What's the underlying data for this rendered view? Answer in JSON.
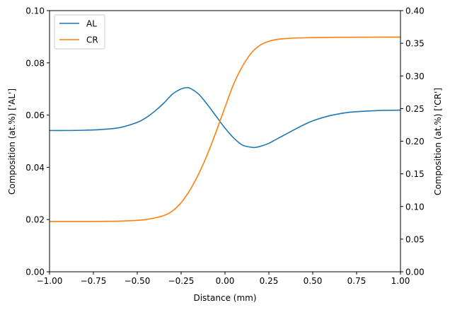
{
  "chart_data": {
    "type": "line",
    "title": "",
    "xlabel": "Distance (mm)",
    "ylabel_left": "Composition (at.%) ['AL']",
    "ylabel_right": "Composition (at.%) ['CR']",
    "xlim": [
      -1.0,
      1.0
    ],
    "ylim_left": [
      0.0,
      0.1
    ],
    "ylim_right": [
      0.0,
      0.4
    ],
    "x_ticks": [
      "−1.00",
      "−0.75",
      "−0.50",
      "−0.25",
      "0.00",
      "0.25",
      "0.50",
      "0.75",
      "1.00"
    ],
    "y_ticks_left": [
      "0.00",
      "0.02",
      "0.04",
      "0.06",
      "0.08",
      "0.10"
    ],
    "y_ticks_right": [
      "0.00",
      "0.05",
      "0.10",
      "0.15",
      "0.20",
      "0.25",
      "0.30",
      "0.35",
      "0.40"
    ],
    "grid": false,
    "legend": "top-left",
    "series": [
      {
        "name": "AL",
        "axis": "left",
        "color": "#1f77b4",
        "x": [
          -1.0,
          -0.9,
          -0.8,
          -0.7,
          -0.6,
          -0.5,
          -0.45,
          -0.4,
          -0.35,
          -0.3,
          -0.25,
          -0.22,
          -0.2,
          -0.15,
          -0.1,
          -0.05,
          0.0,
          0.05,
          0.1,
          0.15,
          0.17,
          0.2,
          0.25,
          0.3,
          0.35,
          0.4,
          0.45,
          0.5,
          0.6,
          0.7,
          0.8,
          0.9,
          1.0
        ],
        "y": [
          0.0541,
          0.0541,
          0.0542,
          0.0545,
          0.0552,
          0.0572,
          0.059,
          0.0615,
          0.0645,
          0.068,
          0.07,
          0.0705,
          0.0703,
          0.068,
          0.064,
          0.0595,
          0.055,
          0.0512,
          0.0485,
          0.0477,
          0.0476,
          0.048,
          0.0492,
          0.051,
          0.0528,
          0.0546,
          0.0563,
          0.0578,
          0.0598,
          0.061,
          0.0615,
          0.0618,
          0.0619
        ]
      },
      {
        "name": "CR",
        "axis": "right",
        "color": "#ff7f0e",
        "x": [
          -1.0,
          -0.9,
          -0.8,
          -0.7,
          -0.6,
          -0.5,
          -0.45,
          -0.4,
          -0.35,
          -0.3,
          -0.25,
          -0.2,
          -0.15,
          -0.1,
          -0.05,
          0.0,
          0.05,
          0.1,
          0.15,
          0.2,
          0.25,
          0.3,
          0.35,
          0.4,
          0.5,
          0.6,
          0.7,
          0.8,
          0.9,
          1.0
        ],
        "y": [
          0.077,
          0.077,
          0.077,
          0.0772,
          0.0776,
          0.0788,
          0.08,
          0.0825,
          0.086,
          0.093,
          0.106,
          0.125,
          0.15,
          0.18,
          0.215,
          0.252,
          0.288,
          0.315,
          0.335,
          0.347,
          0.353,
          0.356,
          0.3572,
          0.358,
          0.3586,
          0.359,
          0.3592,
          0.3593,
          0.3594,
          0.3594
        ]
      }
    ]
  }
}
